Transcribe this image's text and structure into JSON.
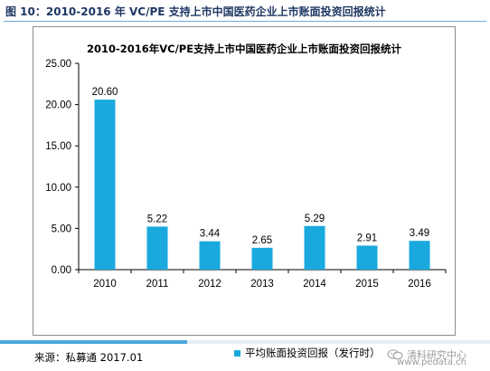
{
  "caption": "图 10：2010-2016 年 VC/PE 支持上市中国医药企业上市账面投资回报统计",
  "colors": {
    "bar": "#1aa9de",
    "axis": "#000000",
    "caption": "#1f3864"
  },
  "chart_data": {
    "type": "bar",
    "title": "2010-2016年VC/PE支持上市中国医药企业上市账面投资回报统计",
    "categories": [
      "2010",
      "2011",
      "2012",
      "2013",
      "2014",
      "2015",
      "2016"
    ],
    "series": [
      {
        "name": "平均账面投资回报（发行时）",
        "values": [
          20.6,
          5.22,
          3.44,
          2.65,
          5.29,
          2.91,
          3.49
        ]
      }
    ],
    "data_labels": [
      "20.60",
      "5.22",
      "3.44",
      "2.65",
      "5.29",
      "2.91",
      "3.49"
    ],
    "yticks": [
      "0.00",
      "5.00",
      "10.00",
      "15.00",
      "20.00",
      "25.00"
    ],
    "ylim": [
      0,
      25
    ],
    "xlabel": "",
    "ylabel": "",
    "grid": false,
    "legend_position": "bottom"
  },
  "source": "来源：私募通 2017.01",
  "watermark": {
    "name": "清科研究中心",
    "site": "www.pedata.cn",
    "icon": "wechat-icon"
  }
}
